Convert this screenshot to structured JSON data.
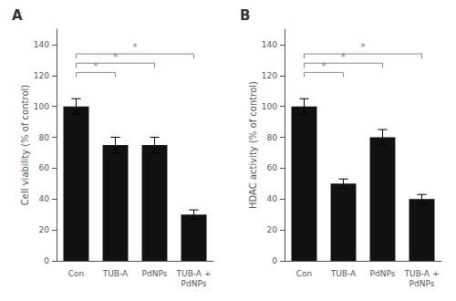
{
  "chart_data": [
    {
      "type": "bar",
      "title": "A",
      "categories": [
        "Con",
        "TUB-A",
        "PdNPs",
        "TUB-A +\nPdNPs"
      ],
      "values": [
        100,
        75,
        75,
        30
      ],
      "errors": [
        5,
        5,
        5,
        3
      ],
      "ylabel": "Cell viability (% of control)",
      "ylim": [
        0,
        150
      ],
      "yticks": [
        0,
        20,
        40,
        60,
        80,
        100,
        120,
        140
      ],
      "color": "#111111",
      "grid": false,
      "annotations": [
        {
          "x1": "Con",
          "x2": "TUB-A",
          "y": 122,
          "drop": 3,
          "label": "*",
          "label_offset": 1,
          "color": "#888888"
        },
        {
          "x1": "Con",
          "x2": "PdNPs",
          "y": 128,
          "drop": 3,
          "label": "*",
          "label_offset": 1,
          "color": "#888888"
        },
        {
          "x1": "Con",
          "x2": "TUB-A +\nPdNPs",
          "y": 134,
          "drop": 3,
          "label": "*",
          "label_offset": 1,
          "color": "#888888"
        }
      ]
    },
    {
      "type": "bar",
      "title": "B",
      "categories": [
        "Con",
        "TUB-A",
        "PdNPs",
        "TUB-A +\nPdNPs"
      ],
      "values": [
        100,
        50,
        80,
        40
      ],
      "errors": [
        5,
        3,
        5,
        3
      ],
      "ylabel": "HDAC activity (% of control)",
      "ylim": [
        0,
        150
      ],
      "yticks": [
        0,
        20,
        40,
        60,
        80,
        100,
        120,
        140
      ],
      "color": "#111111",
      "grid": false,
      "annotations": [
        {
          "x1": "Con",
          "x2": "TUB-A",
          "y": 122,
          "drop": 3,
          "label": "*",
          "label_offset": 1,
          "color": "#888888"
        },
        {
          "x1": "Con",
          "x2": "PdNPs",
          "y": 128,
          "drop": 3,
          "label": "*",
          "label_offset": 1,
          "color": "#888888"
        },
        {
          "x1": "Con",
          "x2": "TUB-A +\nPdNPs",
          "y": 134,
          "drop": 3,
          "label": "*",
          "label_offset": 1,
          "color": "#888888"
        }
      ]
    }
  ]
}
